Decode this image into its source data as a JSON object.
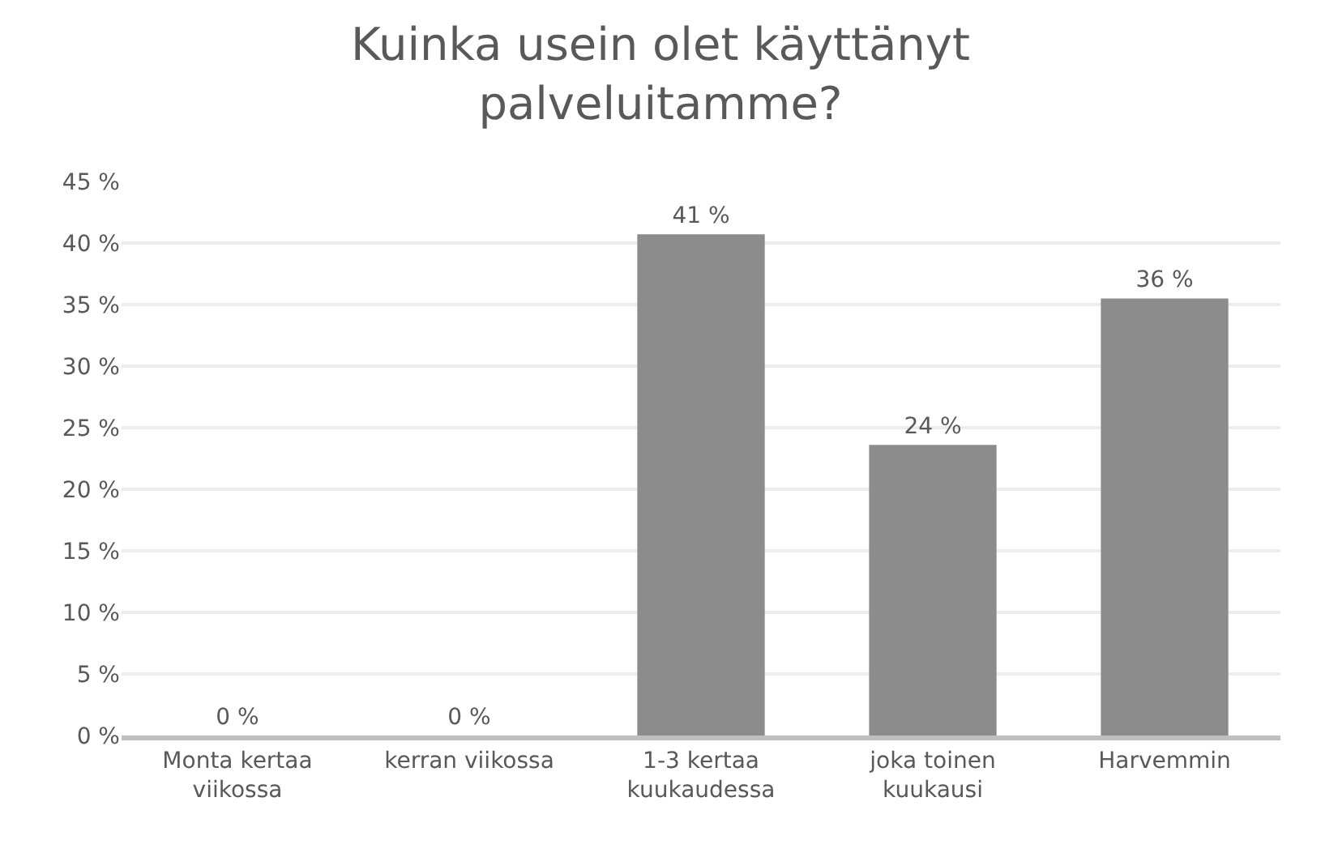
{
  "chart_data": {
    "type": "bar",
    "title": "Kuinka usein olet käyttänyt\npalveluitamme?",
    "categories": [
      "Monta kertaa\nviikossa",
      "kerran viikossa",
      "1-3 kertaa\nkuukaudessa",
      "joka toinen\nkuukausi",
      "Harvemmin"
    ],
    "values": [
      0,
      0,
      40.7,
      23.6,
      35.5
    ],
    "value_labels": [
      "0 %",
      "0 %",
      "41 %",
      "24 %",
      "36 %"
    ],
    "color": "#8c8c8c",
    "ylim": [
      0,
      45
    ],
    "yticks": [
      {
        "value": 0,
        "label": "0 %"
      },
      {
        "value": 5,
        "label": "5 %"
      },
      {
        "value": 10,
        "label": "10 %"
      },
      {
        "value": 15,
        "label": "15 %"
      },
      {
        "value": 20,
        "label": "20 %"
      },
      {
        "value": 25,
        "label": "25 %"
      },
      {
        "value": 30,
        "label": "30 %"
      },
      {
        "value": 35,
        "label": "35 %"
      },
      {
        "value": 40,
        "label": "40 %"
      },
      {
        "value": 45,
        "label": "45 %"
      }
    ],
    "grid": "y"
  }
}
